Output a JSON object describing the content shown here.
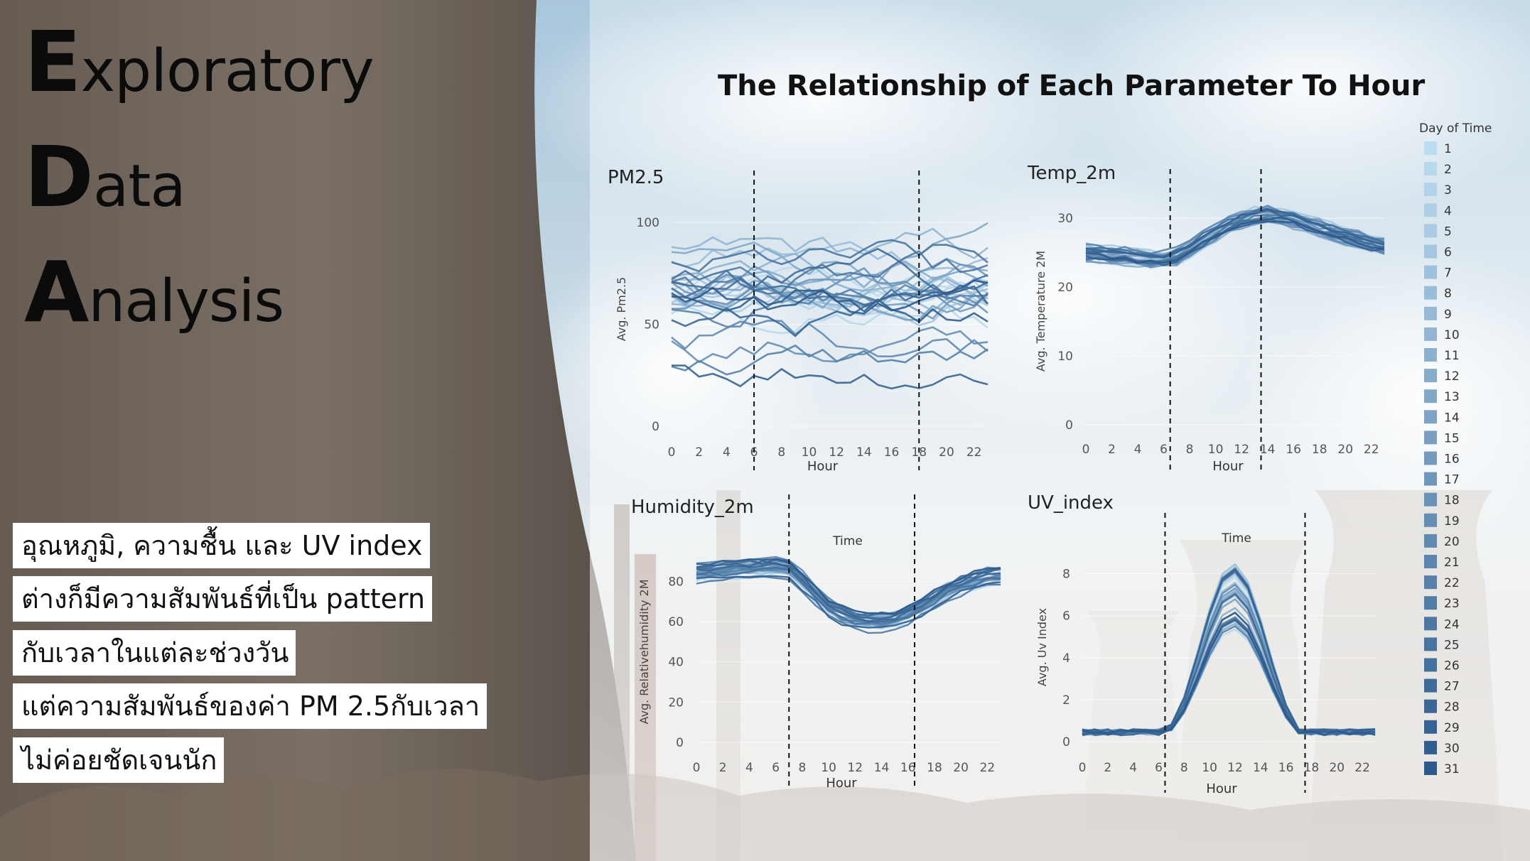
{
  "title": {
    "words": [
      {
        "cap": "E",
        "rest": "xploratory"
      },
      {
        "cap": "D",
        "rest": "ata"
      },
      {
        "cap": "A",
        "rest": "nalysis"
      }
    ]
  },
  "charts_title": "The Relationship of Each Parameter To Hour",
  "note_lines": [
    "อุณหภูมิ, ความชื้น และ UV index",
    "ต่างก็มีความสัมพันธ์ที่เป็น pattern",
    "กับเวลาในแต่ละช่วงวัน",
    "แต่ความสัมพันธ์ของค่า PM 2.5กับเวลา",
    "ไม่ค่อยชัดเจนนัก"
  ],
  "legend": {
    "title": "Day of Time",
    "items": [
      "1",
      "2",
      "3",
      "4",
      "5",
      "6",
      "7",
      "8",
      "9",
      "10",
      "11",
      "12",
      "13",
      "14",
      "15",
      "16",
      "17",
      "18",
      "19",
      "20",
      "21",
      "22",
      "23",
      "24",
      "25",
      "26",
      "27",
      "28",
      "29",
      "30",
      "31"
    ],
    "color_start": "#bcdcf0",
    "color_end": "#2c5a8c"
  },
  "chart_data": [
    {
      "type": "line",
      "title": "PM2.5",
      "xlabel": "Hour",
      "ylabel": "Avg. Pm2.5",
      "x": [
        0,
        1,
        2,
        3,
        4,
        5,
        6,
        7,
        8,
        9,
        10,
        11,
        12,
        13,
        14,
        15,
        16,
        17,
        18,
        19,
        20,
        21,
        22,
        23
      ],
      "xticks": [
        0,
        2,
        4,
        6,
        8,
        10,
        12,
        14,
        16,
        18,
        20,
        22
      ],
      "yticks": [
        0,
        50,
        100
      ],
      "ylim": [
        0,
        115
      ],
      "series_count": 31,
      "vlines": [
        6,
        18
      ],
      "series_profile": {
        "base_range": [
          30,
          85
        ],
        "variation": "irregular, no clear hourly pattern"
      }
    },
    {
      "type": "line",
      "title": "Temp_2m",
      "xlabel": "Hour",
      "ylabel": "Avg. Temperature 2M",
      "x": [
        0,
        1,
        2,
        3,
        4,
        5,
        6,
        7,
        8,
        9,
        10,
        11,
        12,
        13,
        14,
        15,
        16,
        17,
        18,
        19,
        20,
        21,
        22,
        23
      ],
      "xticks": [
        0,
        2,
        4,
        6,
        8,
        10,
        12,
        14,
        16,
        18,
        20,
        22
      ],
      "yticks": [
        0,
        10,
        20,
        30
      ],
      "ylim": [
        0,
        33
      ],
      "series_count": 31,
      "vlines": [
        6.5,
        13.5
      ],
      "mean_profile": [
        25,
        24.9,
        24.7,
        24.5,
        24.3,
        24.1,
        24,
        24.5,
        25.6,
        26.8,
        28,
        29,
        29.8,
        30.3,
        30.5,
        30.3,
        29.8,
        29.2,
        28.6,
        28,
        27.4,
        26.9,
        26.4,
        25.9
      ]
    },
    {
      "type": "line",
      "title": "Humidity_2m",
      "subtitle": "Time",
      "xlabel": "Hour",
      "ylabel": "Avg. Relativehumidity 2M",
      "x": [
        0,
        1,
        2,
        3,
        4,
        5,
        6,
        7,
        8,
        9,
        10,
        11,
        12,
        13,
        14,
        15,
        16,
        17,
        18,
        19,
        20,
        21,
        22,
        23
      ],
      "xticks": [
        0,
        2,
        4,
        6,
        8,
        10,
        12,
        14,
        16,
        18,
        20,
        22
      ],
      "yticks": [
        0,
        20,
        40,
        60,
        80
      ],
      "ylim": [
        0,
        90
      ],
      "series_count": 31,
      "vlines": [
        7,
        16.5
      ],
      "mean_profile": [
        84,
        84.5,
        85,
        85.5,
        86,
        86.5,
        87,
        86,
        80,
        73,
        67,
        63,
        61,
        60,
        60,
        61,
        63,
        67,
        71,
        75,
        78,
        80,
        82,
        83
      ]
    },
    {
      "type": "line",
      "title": "UV_index",
      "subtitle": "Time",
      "xlabel": "Hour",
      "ylabel": "Avg. Uv Index",
      "x": [
        0,
        1,
        2,
        3,
        4,
        5,
        6,
        7,
        8,
        9,
        10,
        11,
        12,
        13,
        14,
        15,
        16,
        17,
        18,
        19,
        20,
        21,
        22,
        23
      ],
      "xticks": [
        0,
        2,
        4,
        6,
        8,
        10,
        12,
        14,
        16,
        18,
        20,
        22
      ],
      "yticks": [
        0,
        2,
        4,
        6,
        8
      ],
      "ylim": [
        0,
        9
      ],
      "series_count": 31,
      "vlines": [
        6.5,
        17.5
      ],
      "mean_profile": [
        0.3,
        0.3,
        0.3,
        0.3,
        0.3,
        0.3,
        0.3,
        0.7,
        1.8,
        3.5,
        5.3,
        6.7,
        7.1,
        6.4,
        4.9,
        3.1,
        1.5,
        0.5,
        0.3,
        0.3,
        0.3,
        0.3,
        0.3,
        0.3
      ]
    }
  ]
}
